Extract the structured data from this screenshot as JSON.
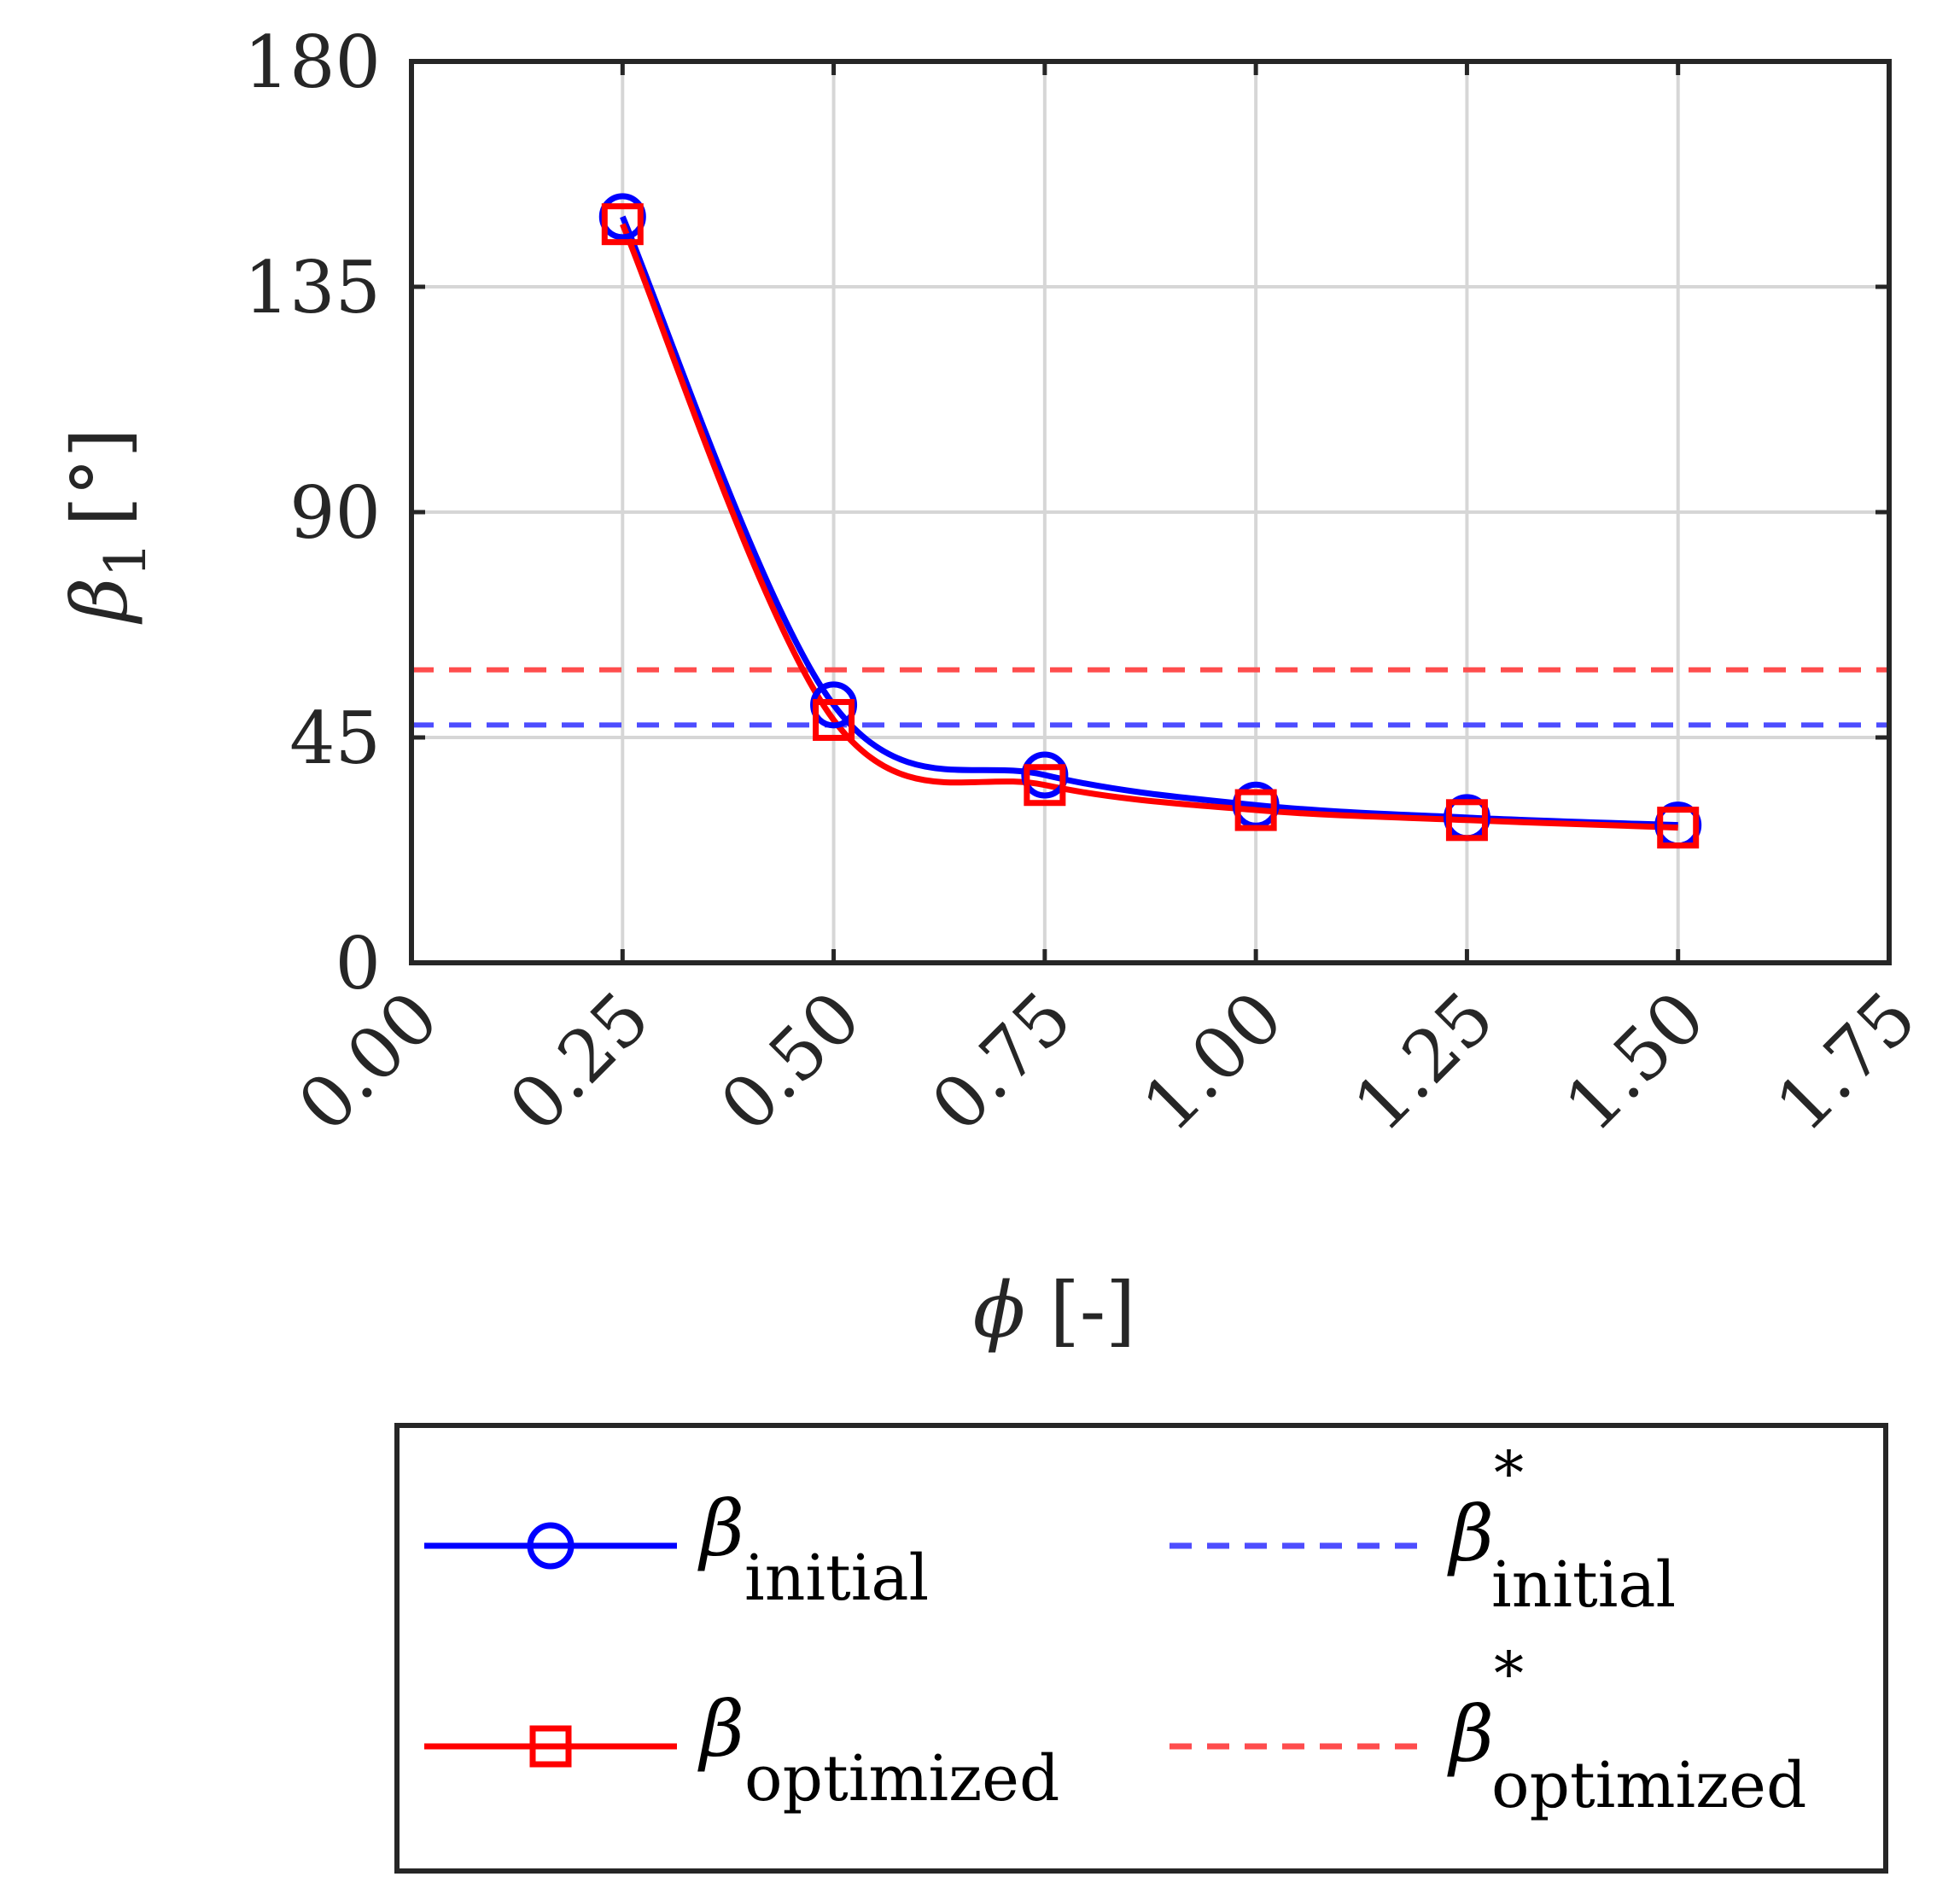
{
  "chart_data": {
    "type": "line",
    "title": "",
    "xlabel_symbol": "ϕ",
    "xlabel_unit": "[-]",
    "ylabel_symbol": "β",
    "ylabel_subscript": "1",
    "ylabel_unit": "[°]",
    "xlim": [
      0,
      1.75
    ],
    "ylim": [
      0,
      180
    ],
    "xticks": [
      "0.00",
      "0.25",
      "0.50",
      "0.75",
      "1.00",
      "1.25",
      "1.50",
      "1.75"
    ],
    "xtick_values": [
      0,
      0.25,
      0.5,
      0.75,
      1.0,
      1.25,
      1.5,
      1.75
    ],
    "yticks": [
      "0",
      "45",
      "90",
      "135",
      "180"
    ],
    "ytick_values": [
      0,
      45,
      90,
      135,
      180
    ],
    "grid": true,
    "legend_position": "bottom, outside",
    "series": [
      {
        "name": "β_initial",
        "label_main": "β",
        "label_sub": "initial",
        "label_sup": "",
        "color": "#0000ff",
        "style": "solid",
        "marker": "circle",
        "x": [
          0.25,
          0.5,
          0.75,
          1.0,
          1.25,
          1.5
        ],
        "y": [
          149,
          51.5,
          37.5,
          31.5,
          29,
          27.5
        ]
      },
      {
        "name": "β_optimized",
        "label_main": "β",
        "label_sub": "optimized",
        "label_sup": "",
        "color": "#ff0000",
        "style": "solid",
        "marker": "square",
        "x": [
          0.25,
          0.5,
          0.75,
          1.0,
          1.25,
          1.5
        ],
        "y": [
          147.5,
          48.5,
          35.5,
          30.5,
          28.5,
          27
        ]
      },
      {
        "name": "β*_initial",
        "label_main": "β",
        "label_sub": "initial",
        "label_sup": "*",
        "color": "#4d4dff",
        "style": "dashed",
        "marker": "none",
        "y_const": 47.5
      },
      {
        "name": "β*_optimized",
        "label_main": "β",
        "label_sub": "optimized",
        "label_sup": "*",
        "color": "#ff4d4d",
        "style": "dashed",
        "marker": "none",
        "y_const": 58.5
      }
    ]
  }
}
